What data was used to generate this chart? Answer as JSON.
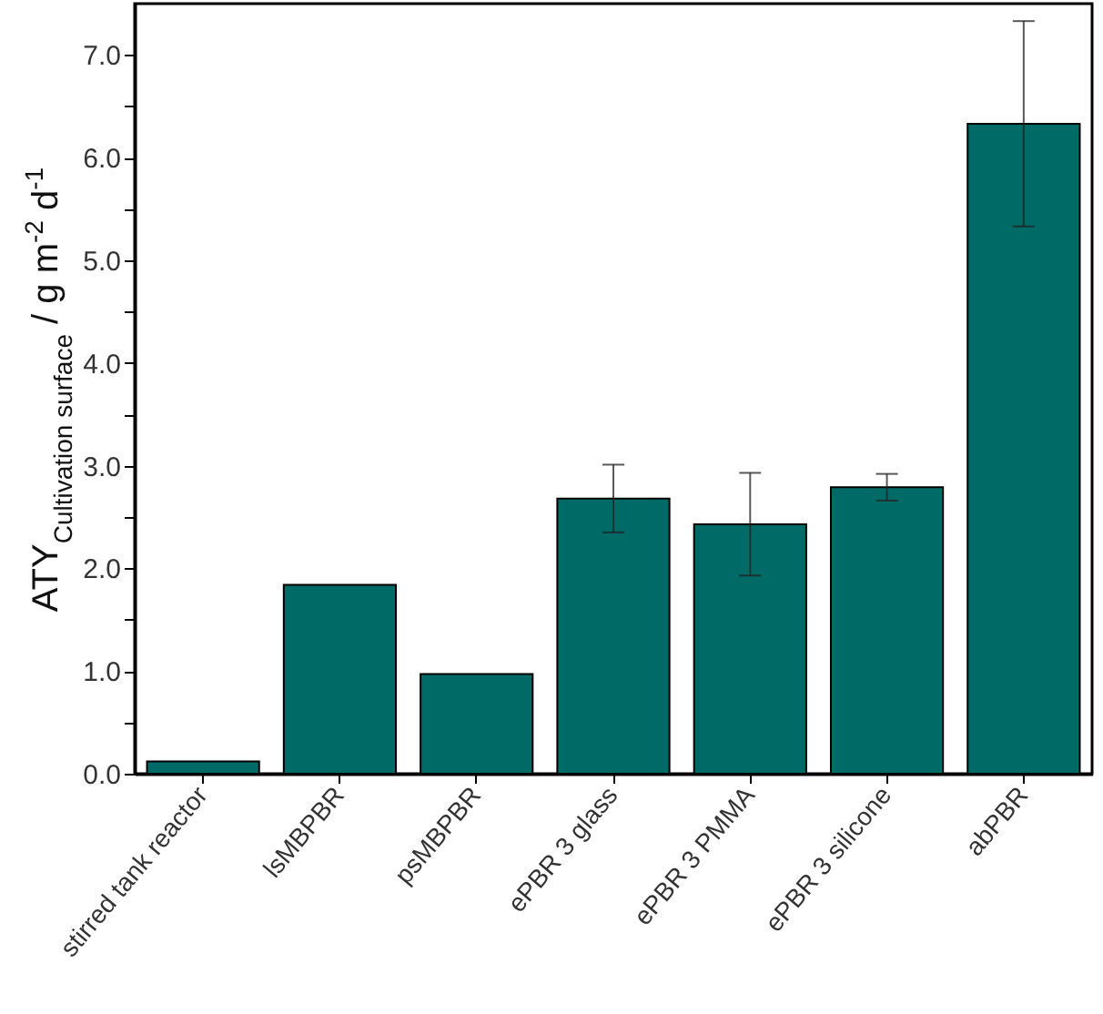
{
  "chart_data": {
    "type": "bar",
    "ylabel": "ATY$_{Cultivation surface}$ / g m$^{-2}$ d$^{-1}$",
    "categories": [
      "stirred tank reactor",
      "lsMBPBR",
      "psMBPBR",
      "ePBR 3 glass",
      "ePBR 3 PMMA",
      "ePBR 3 silicone",
      "abPBR"
    ],
    "values": [
      0.12,
      1.84,
      0.97,
      2.68,
      2.43,
      2.79,
      6.33
    ],
    "errors": [
      null,
      null,
      null,
      0.33,
      0.5,
      0.13,
      1.0
    ],
    "color": "#006a66",
    "ylim": [
      0,
      7.5
    ],
    "yticks": [
      {
        "value": 0,
        "label": "0.0"
      },
      {
        "value": 0.5,
        "label": null
      },
      {
        "value": 1,
        "label": "1.0"
      },
      {
        "value": 1.5,
        "label": null
      },
      {
        "value": 2,
        "label": "2.0"
      },
      {
        "value": 2.5,
        "label": null
      },
      {
        "value": 3,
        "label": "3.0"
      },
      {
        "value": 3.5,
        "label": null
      },
      {
        "value": 4,
        "label": "4.0"
      },
      {
        "value": 4.5,
        "label": null
      },
      {
        "value": 5,
        "label": "5.0"
      },
      {
        "value": 5.5,
        "label": null
      },
      {
        "value": 6,
        "label": "6.0"
      },
      {
        "value": 6.5,
        "label": null
      },
      {
        "value": 7,
        "label": "7.0"
      }
    ],
    "grid": false
  }
}
